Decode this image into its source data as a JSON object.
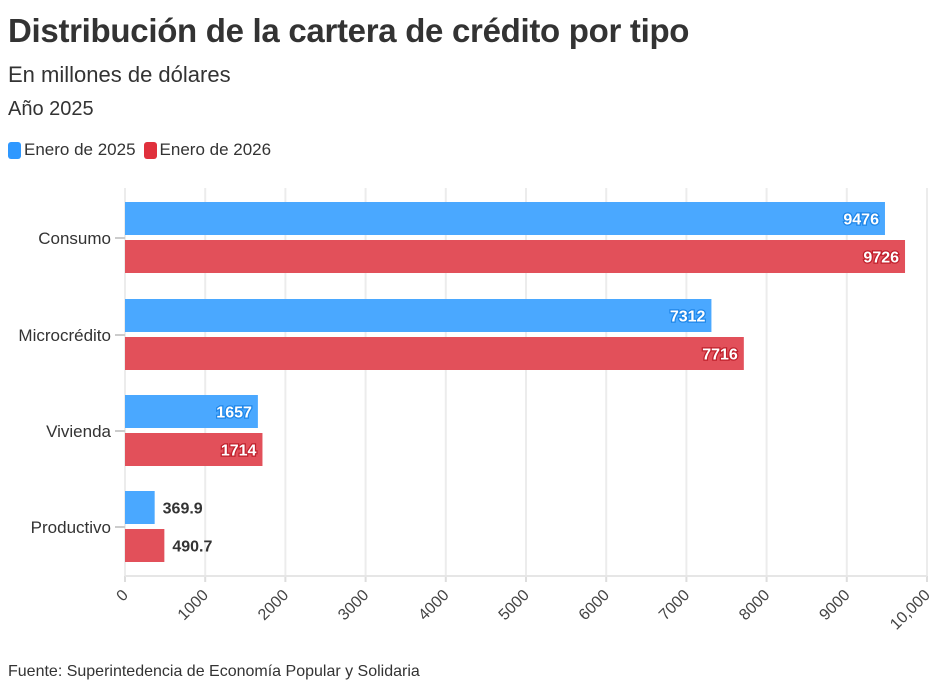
{
  "chart_data": {
    "type": "bar",
    "orientation": "horizontal",
    "title": "Distribución de la cartera de crédito por tipo",
    "subtitle": "En millones de dólares",
    "subtitle2": "Año 2025",
    "categories": [
      "Consumo",
      "Microcrédito",
      "Vivienda",
      "Productivo"
    ],
    "series": [
      {
        "name": "Enero de 2025",
        "color": "#4aa8ff",
        "values": [
          9476,
          7312,
          1657,
          369.9
        ],
        "labels": [
          "9476",
          "7312",
          "1657",
          "369.9"
        ]
      },
      {
        "name": "Enero de 2026",
        "color": "#e2505a",
        "values": [
          9726,
          7716,
          1714,
          490.7
        ],
        "labels": [
          "9726",
          "7716",
          "1714",
          "490.7"
        ]
      }
    ],
    "xlim": [
      0,
      10000
    ],
    "xticks": [
      "0",
      "1000",
      "2000",
      "3000",
      "4000",
      "5000",
      "6000",
      "7000",
      "8000",
      "9000",
      "10,000"
    ],
    "grid": true,
    "legend": "top-left",
    "source": "Fuente: Superintedencia de Economía Popular y Solidaria"
  }
}
